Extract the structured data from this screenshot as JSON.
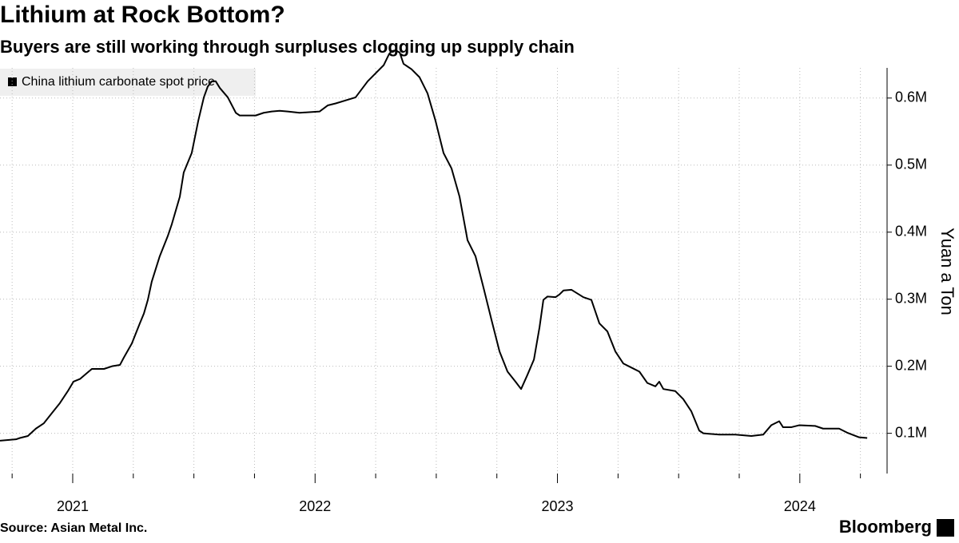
{
  "chart_data": {
    "type": "line",
    "title": "Lithium at Rock Bottom?",
    "subtitle": "Buyers are still working through surpluses clogging up supply chain",
    "y_label": "Yuan a Ton",
    "source": "Source: Asian Metal Inc.",
    "brand": "Bloomberg",
    "legend_position": "upper left",
    "grid": true,
    "xlim": [
      2020.7,
      2024.36
    ],
    "xticks": [
      2021,
      2022,
      2023,
      2024
    ],
    "xminorticks": [
      2020.75,
      2021.25,
      2021.5,
      2021.75,
      2022.25,
      2022.5,
      2022.75,
      2023.25,
      2023.5,
      2023.75,
      2024.25
    ],
    "ylim": [
      40000,
      645000
    ],
    "yticks": [
      {
        "value": 100000,
        "label": "0.1M"
      },
      {
        "value": 200000,
        "label": "0.2M"
      },
      {
        "value": 300000,
        "label": "0.3M"
      },
      {
        "value": 400000,
        "label": "0.4M"
      },
      {
        "value": 500000,
        "label": "0.5M"
      },
      {
        "value": 600000,
        "label": "0.6M"
      }
    ],
    "x": [
      2020.7,
      2020.766,
      2020.782,
      2020.815,
      2020.848,
      2020.881,
      2020.914,
      2020.947,
      2020.98,
      2021.003,
      2021.03,
      2021.056,
      2021.079,
      2021.129,
      2021.162,
      2021.195,
      2021.211,
      2021.244,
      2021.277,
      2021.294,
      2021.31,
      2021.326,
      2021.359,
      2021.392,
      2021.409,
      2021.442,
      2021.458,
      2021.491,
      2021.518,
      2021.541,
      2021.557,
      2021.574,
      2021.59,
      2021.607,
      2021.64,
      2021.673,
      2021.689,
      2021.755,
      2021.788,
      2021.821,
      2021.854,
      2021.887,
      2021.936,
      2022.019,
      2022.052,
      2022.085,
      2022.167,
      2022.217,
      2022.25,
      2022.283,
      2022.306,
      2022.316,
      2022.332,
      2022.349,
      2022.365,
      2022.398,
      2022.431,
      2022.464,
      2022.497,
      2022.53,
      2022.563,
      2022.596,
      2022.629,
      2022.662,
      2022.695,
      2022.728,
      2022.761,
      2022.794,
      2022.827,
      2022.85,
      2022.876,
      2022.903,
      2022.926,
      2022.942,
      2022.959,
      2022.992,
      2023.008,
      2023.025,
      2023.058,
      2023.107,
      2023.14,
      2023.173,
      2023.206,
      2023.239,
      2023.272,
      2023.305,
      2023.338,
      2023.371,
      2023.404,
      2023.42,
      2023.437,
      2023.486,
      2023.519,
      2023.552,
      2023.585,
      2023.602,
      2023.668,
      2023.734,
      2023.8,
      2023.849,
      2023.882,
      2023.915,
      2023.931,
      2023.964,
      2023.997,
      2024.063,
      2024.096,
      2024.162,
      2024.195,
      2024.245,
      2024.278
    ],
    "series": [
      {
        "name": "China lithium carbonate spot price",
        "color": "#000000",
        "values": [
          89000,
          91000,
          93000,
          96000,
          107000,
          115000,
          130000,
          145000,
          163000,
          177000,
          181000,
          189000,
          196000,
          196000,
          200000,
          202000,
          213000,
          234000,
          264000,
          279000,
          299000,
          326000,
          364000,
          394000,
          412000,
          453000,
          489000,
          518000,
          566000,
          601000,
          617000,
          625000,
          625000,
          615000,
          601000,
          578000,
          574000,
          574000,
          578000,
          580000,
          581000,
          580000,
          578000,
          580000,
          589000,
          592000,
          601000,
          625000,
          637000,
          649000,
          666000,
          670000,
          671000,
          668000,
          651000,
          643000,
          631000,
          607000,
          566000,
          518000,
          495000,
          453000,
          388000,
          364000,
          317000,
          269000,
          222000,
          192000,
          177000,
          166000,
          187000,
          210000,
          258000,
          299000,
          304000,
          303000,
          307000,
          313000,
          314000,
          303000,
          299000,
          264000,
          252000,
          222000,
          204000,
          198000,
          192000,
          175000,
          170000,
          177000,
          166000,
          163000,
          151000,
          133000,
          104000,
          100000,
          98000,
          98000,
          96000,
          98000,
          112000,
          118000,
          109000,
          109000,
          112000,
          111000,
          107000,
          107000,
          101000,
          94000,
          93000
        ]
      }
    ]
  }
}
